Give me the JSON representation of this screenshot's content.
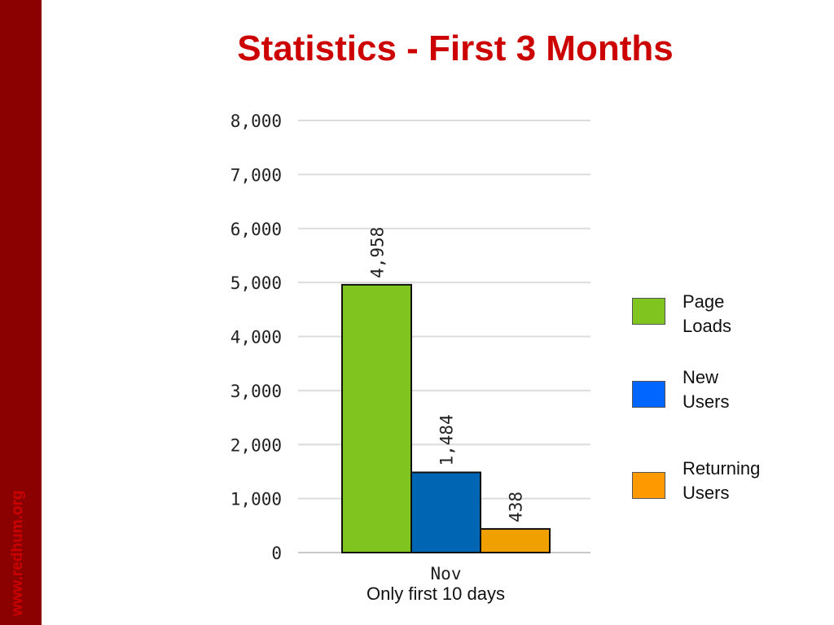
{
  "sidebar": {
    "url": "www.redhum.org",
    "bg_color": "#8b0000",
    "text_color": "#cc0000"
  },
  "slide": {
    "title": "Statistics - First 3 Months",
    "title_color": "#cc0000",
    "note": "Only first 10 days"
  },
  "chart_data": {
    "type": "bar",
    "categories": [
      "Nov"
    ],
    "series": [
      {
        "name": "Page Loads",
        "values": [
          4958
        ],
        "color": "#80c41f",
        "label": "4,958"
      },
      {
        "name": "New Users",
        "values": [
          1484
        ],
        "color": "#0066b3",
        "label": "1,484"
      },
      {
        "name": "Returning Users",
        "values": [
          438
        ],
        "color": "#f0a000",
        "label": "438"
      }
    ],
    "legend": [
      {
        "line1": "Page",
        "line2": "Loads",
        "color": "#80c41f"
      },
      {
        "line1": "New",
        "line2": "Users",
        "color": "#0066ff"
      },
      {
        "line1": "Returning",
        "line2": "Users",
        "color": "#ff9900"
      }
    ],
    "ylim": [
      0,
      8000
    ],
    "yticks": [
      "0",
      "1,000",
      "2,000",
      "3,000",
      "4,000",
      "5,000",
      "6,000",
      "7,000",
      "8,000"
    ],
    "grid": true,
    "legend_position": "right",
    "title": "",
    "xlabel": "",
    "ylabel": ""
  }
}
